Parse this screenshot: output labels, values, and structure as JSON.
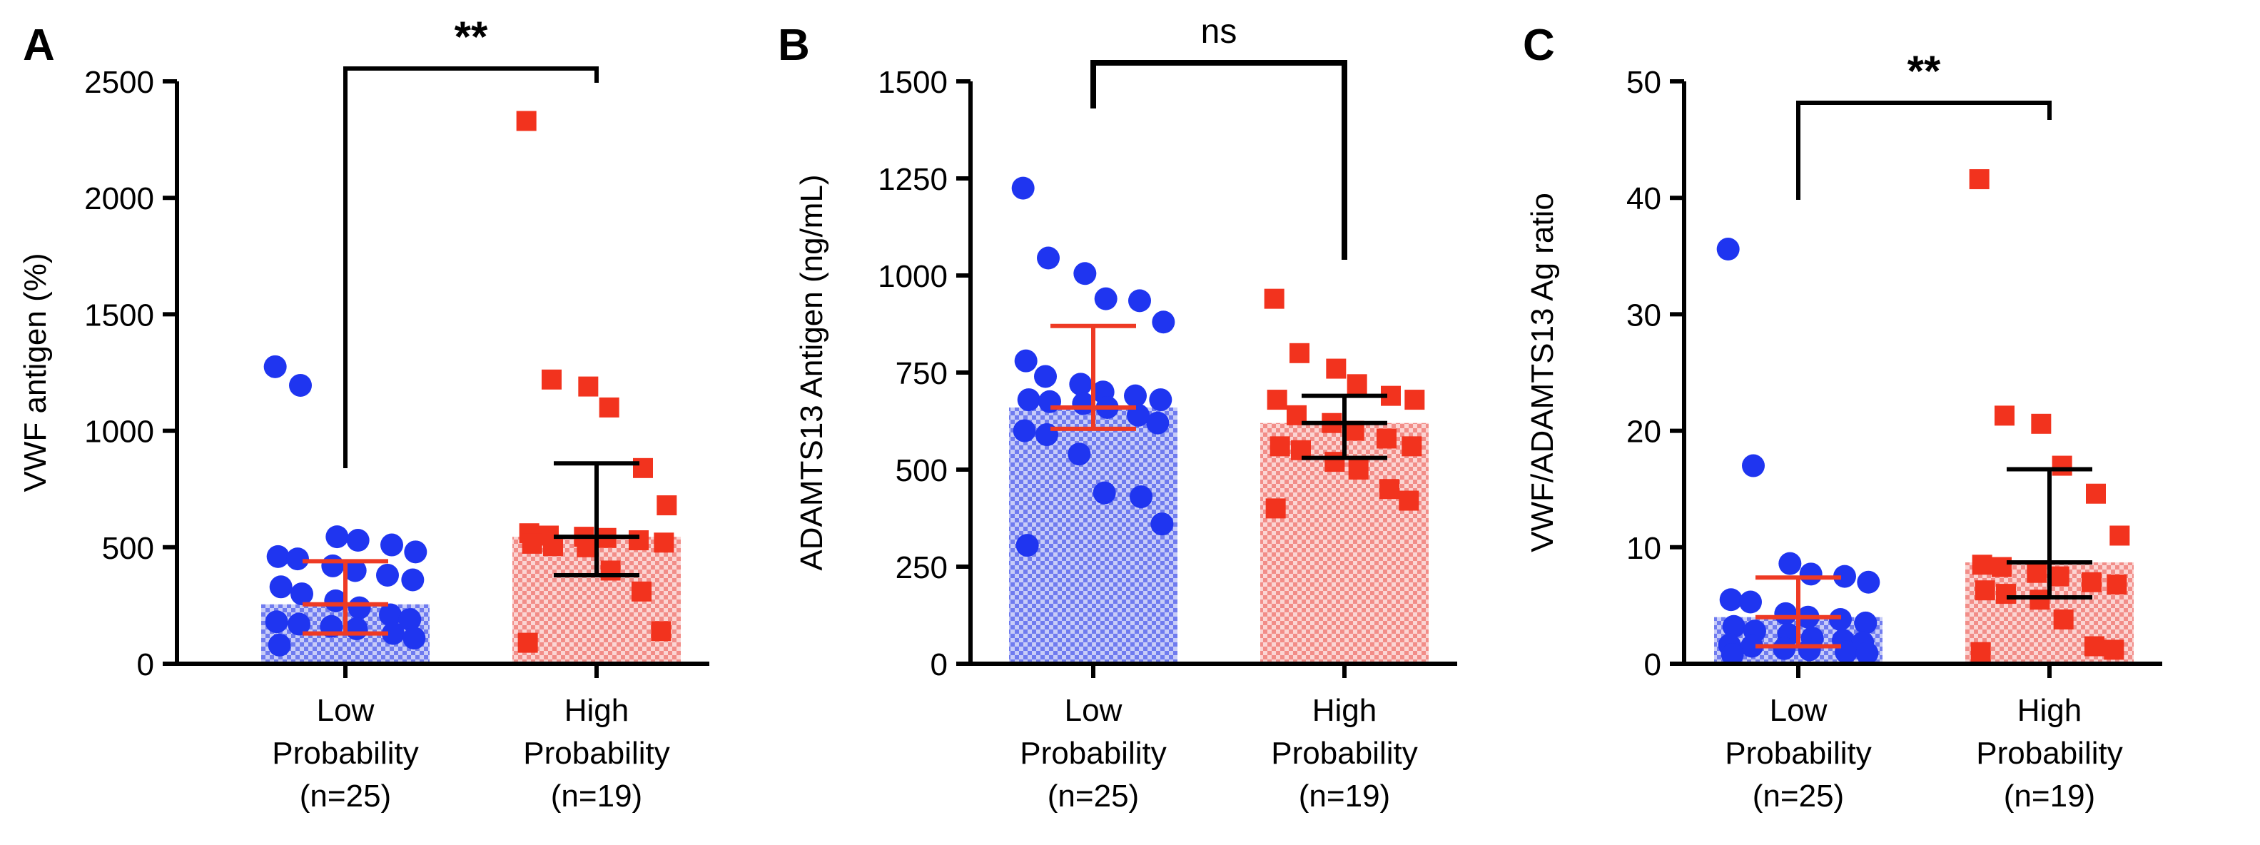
{
  "colors": {
    "low_point": "#1f35f0",
    "low_bar": "#8a94f2",
    "low_errorbar": "#ee3a24",
    "high_point": "#f2331e",
    "high_bar": "#f59a97",
    "high_errorbar": "#000000"
  },
  "chart_data": [
    {
      "type": "bar",
      "panel_label": "A",
      "ylabel": "VWF antigen (%)",
      "ylim": [
        0,
        2500
      ],
      "yticks": [
        "0",
        "500",
        "1000",
        "1500",
        "2000",
        "2500"
      ],
      "categories": [
        {
          "line1": "Low",
          "line2": "Probability",
          "line3": "(n=25)"
        },
        {
          "line1": "High",
          "line2": "Probability",
          "line3": "(n=19)"
        }
      ],
      "series": [
        {
          "name": "Low Probability",
          "bar": 255,
          "err_low": 130,
          "err_high": 440,
          "points": [
            1275,
            1195,
            545,
            530,
            510,
            480,
            460,
            450,
            420,
            400,
            380,
            360,
            330,
            300,
            270,
            240,
            210,
            190,
            180,
            170,
            160,
            150,
            130,
            110,
            80
          ]
        },
        {
          "name": "High Probability",
          "bar": 545,
          "err_low": 380,
          "err_high": 860,
          "points": [
            2330,
            1220,
            1190,
            1100,
            840,
            680,
            560,
            550,
            545,
            540,
            530,
            520,
            515,
            505,
            500,
            400,
            310,
            140,
            90
          ]
        }
      ],
      "significance": "**"
    },
    {
      "type": "bar",
      "panel_label": "B",
      "ylabel": "ADAMTS13 Antigen (ng/mL)",
      "ylim": [
        0,
        1500
      ],
      "yticks": [
        "0",
        "250",
        "500",
        "750",
        "1000",
        "1250",
        "1500"
      ],
      "categories": [
        {
          "line1": "Low",
          "line2": "Probability",
          "line3": "(n=25)"
        },
        {
          "line1": "High",
          "line2": "Probability",
          "line3": "(n=19)"
        }
      ],
      "series": [
        {
          "name": "Low Probability",
          "bar": 660,
          "err_low": 605,
          "err_high": 870,
          "points": [
            1225,
            1045,
            1005,
            940,
            935,
            880,
            780,
            740,
            720,
            700,
            690,
            680,
            680,
            675,
            670,
            660,
            640,
            620,
            600,
            590,
            540,
            440,
            430,
            360,
            305
          ]
        },
        {
          "name": "High Probability",
          "bar": 620,
          "err_low": 530,
          "err_high": 690,
          "points": [
            940,
            800,
            760,
            720,
            690,
            680,
            680,
            640,
            620,
            600,
            580,
            560,
            560,
            550,
            520,
            500,
            450,
            420,
            400
          ]
        }
      ],
      "significance": "ns"
    },
    {
      "type": "bar",
      "panel_label": "C",
      "ylabel": "VWF/ADAMTS13 Ag ratio",
      "ylim": [
        0,
        50
      ],
      "yticks": [
        "0",
        "10",
        "20",
        "30",
        "40",
        "50"
      ],
      "categories": [
        {
          "line1": "Low",
          "line2": "Probability",
          "line3": "(n=25)"
        },
        {
          "line1": "High",
          "line2": "Probability",
          "line3": "(n=19)"
        }
      ],
      "series": [
        {
          "name": "Low Probability",
          "bar": 4,
          "err_low": 1.5,
          "err_high": 7.4,
          "points": [
            35.6,
            17,
            8.6,
            7.7,
            7.5,
            7.0,
            5.5,
            5.3,
            4.3,
            4.0,
            3.8,
            3.5,
            3.2,
            2.8,
            2.5,
            2.2,
            2.0,
            1.8,
            1.6,
            1.5,
            1.3,
            1.2,
            1.0,
            0.9,
            0.8
          ]
        },
        {
          "name": "High Probability",
          "bar": 8.7,
          "err_low": 5.7,
          "err_high": 16.7,
          "points": [
            41.6,
            21.3,
            20.6,
            17,
            14.6,
            11,
            8.5,
            8.3,
            7.8,
            7.5,
            7.0,
            6.8,
            6.3,
            6.0,
            5.5,
            3.8,
            1.5,
            1.2,
            1.0
          ]
        }
      ],
      "significance": "**"
    }
  ]
}
